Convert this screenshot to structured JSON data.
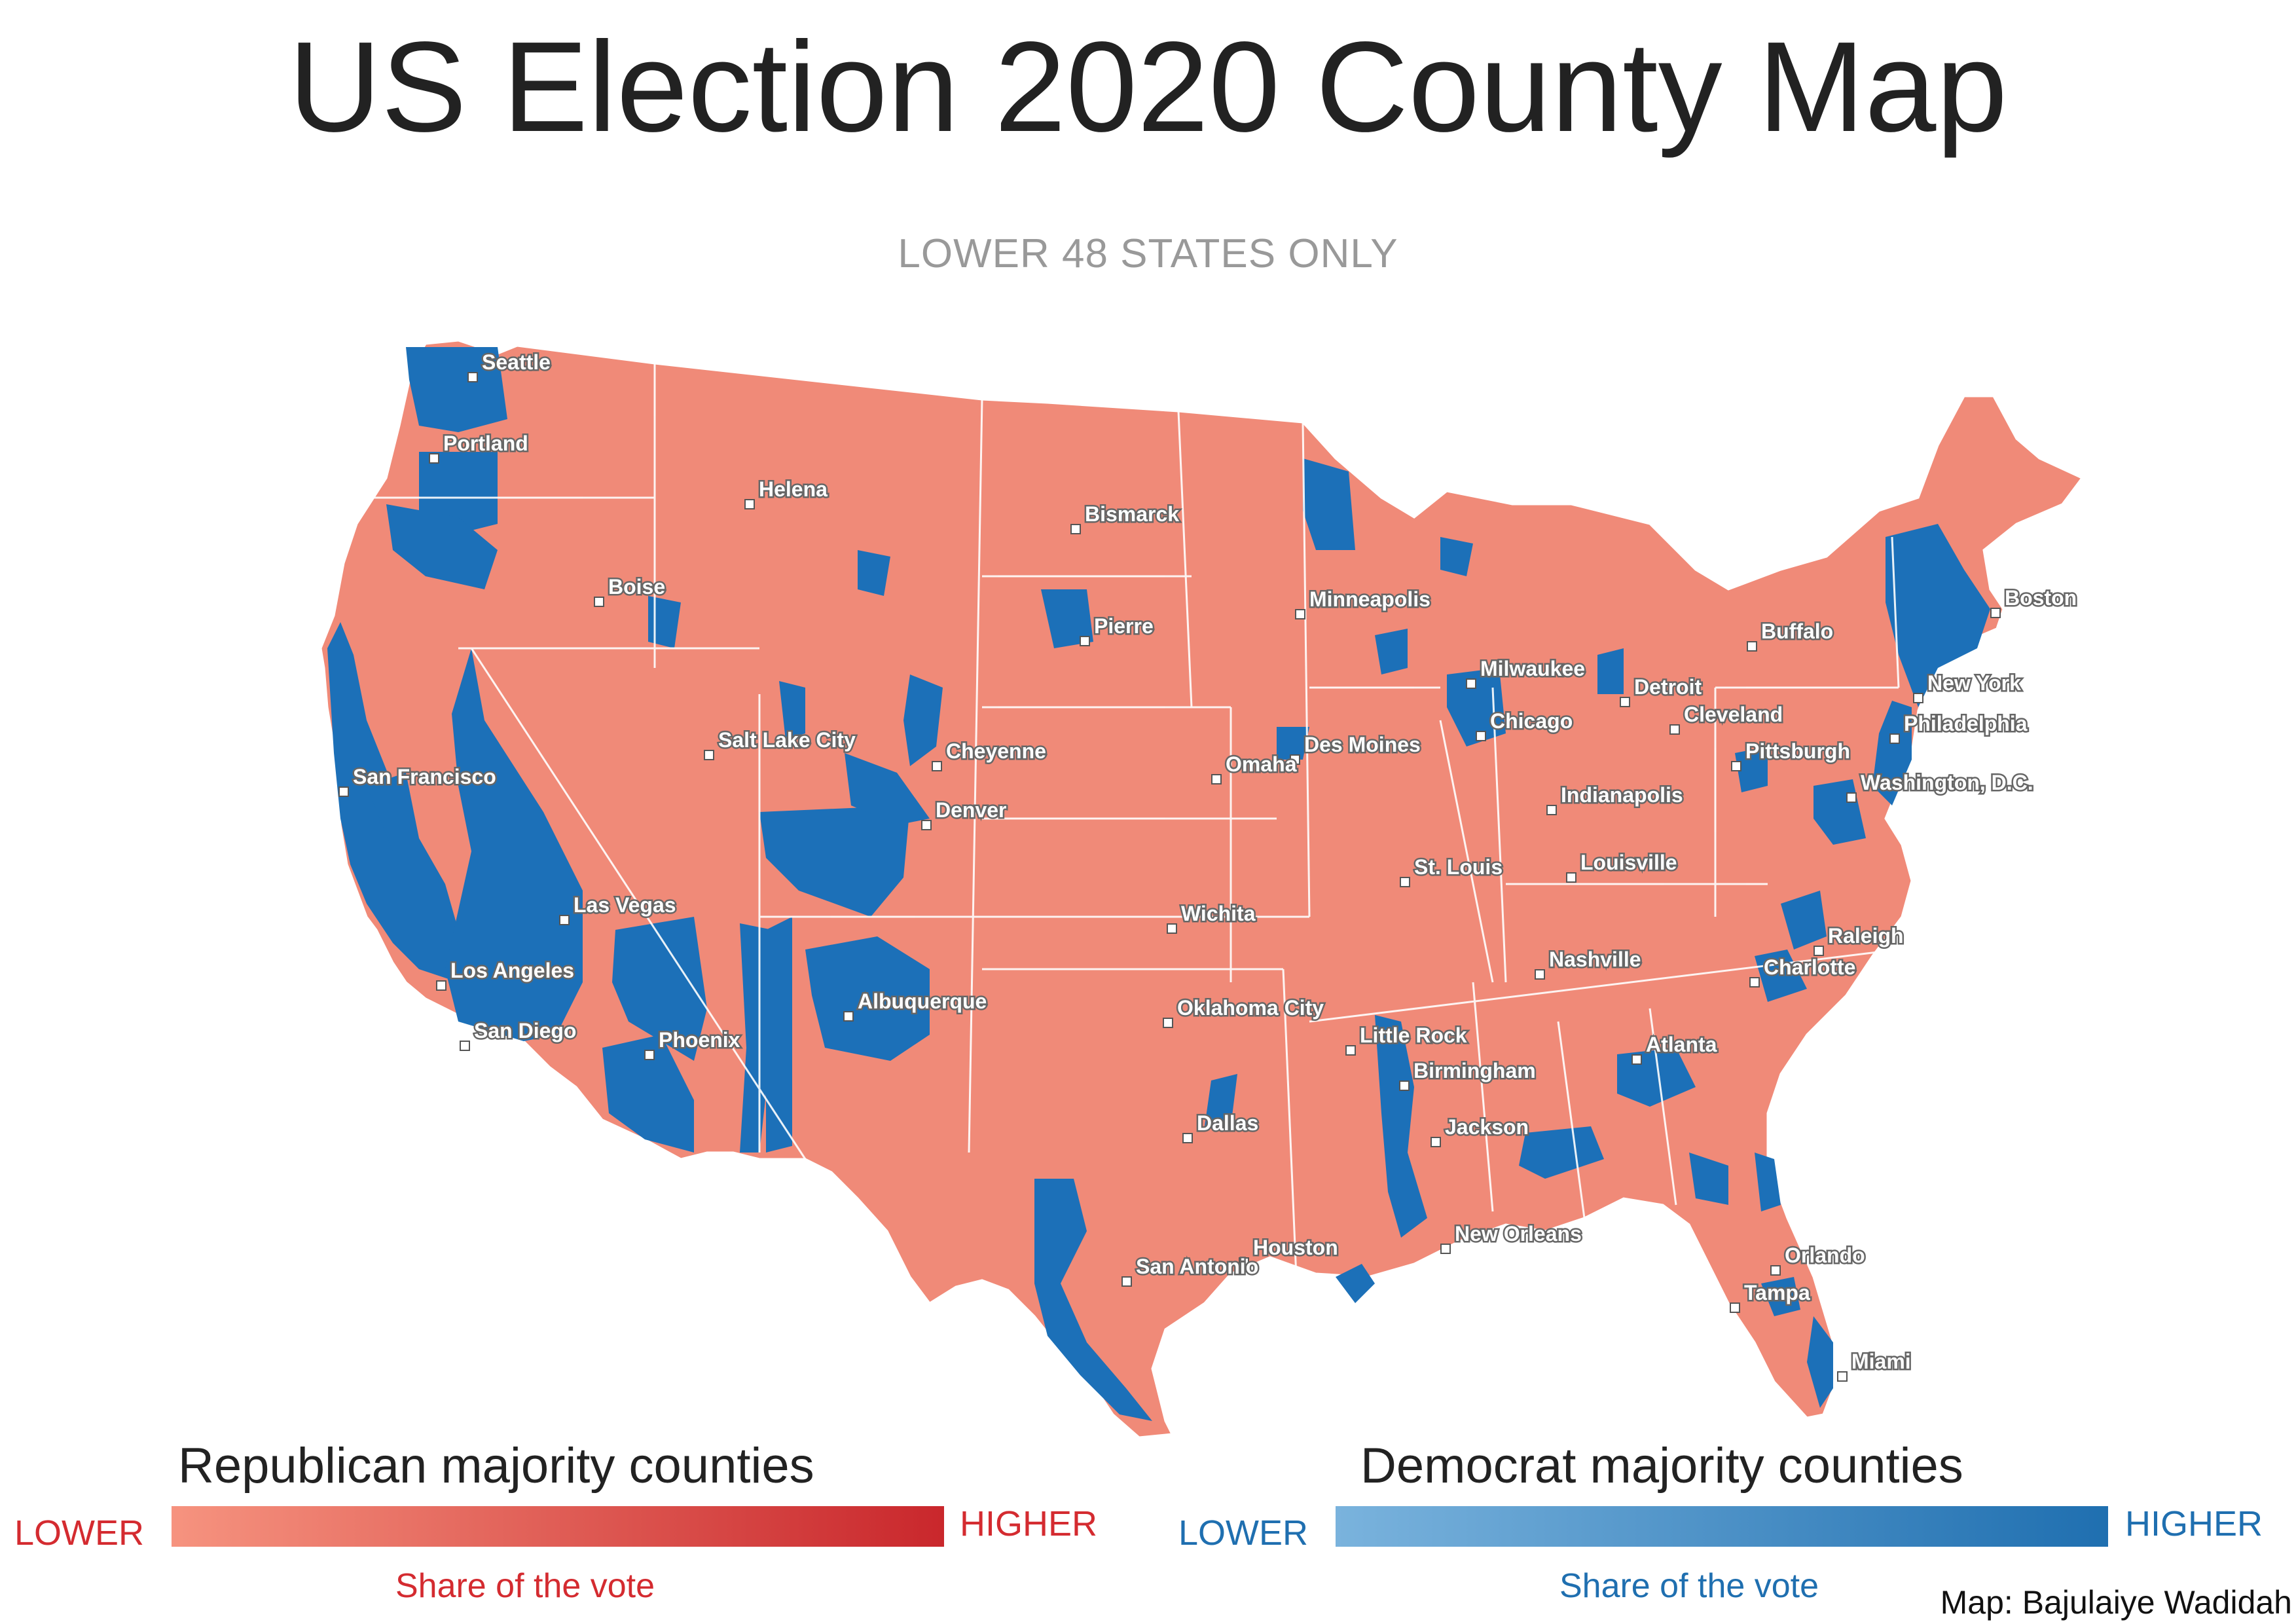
{
  "title": "US Election 2020 County Map",
  "subtitle": "LOWER 48 STATES ONLY",
  "colors": {
    "republican_low": "#f6937f",
    "republican_high": "#c9272c",
    "democrat_low": "#7ab3dd",
    "democrat_high": "#1f6fb0",
    "map_base": "#f08a78",
    "map_blue": "#1c70b8",
    "label_red": "#d42b30",
    "label_blue": "#1f6fb0"
  },
  "cities": [
    {
      "name": "Seattle"
    },
    {
      "name": "Portland"
    },
    {
      "name": "Helena"
    },
    {
      "name": "Bismarck"
    },
    {
      "name": "Boise"
    },
    {
      "name": "Pierre"
    },
    {
      "name": "Minneapolis"
    },
    {
      "name": "Boston"
    },
    {
      "name": "Buffalo"
    },
    {
      "name": "Milwaukee"
    },
    {
      "name": "Detroit"
    },
    {
      "name": "New York"
    },
    {
      "name": "Cleveland"
    },
    {
      "name": "Chicago"
    },
    {
      "name": "Philadelphia"
    },
    {
      "name": "Salt Lake City"
    },
    {
      "name": "Cheyenne"
    },
    {
      "name": "Des Moines"
    },
    {
      "name": "Pittsburgh"
    },
    {
      "name": "San Francisco"
    },
    {
      "name": "Omaha"
    },
    {
      "name": "Washington, D.C."
    },
    {
      "name": "Denver"
    },
    {
      "name": "Indianapolis"
    },
    {
      "name": "St. Louis"
    },
    {
      "name": "Louisville"
    },
    {
      "name": "Las Vegas"
    },
    {
      "name": "Wichita"
    },
    {
      "name": "Raleigh"
    },
    {
      "name": "Nashville"
    },
    {
      "name": "Los Angeles"
    },
    {
      "name": "Charlotte"
    },
    {
      "name": "Albuquerque"
    },
    {
      "name": "Oklahoma City"
    },
    {
      "name": "San Diego"
    },
    {
      "name": "Little Rock"
    },
    {
      "name": "Phoenix"
    },
    {
      "name": "Atlanta"
    },
    {
      "name": "Birmingham"
    },
    {
      "name": "Dallas"
    },
    {
      "name": "Jackson"
    },
    {
      "name": "New Orleans"
    },
    {
      "name": "Houston"
    },
    {
      "name": "San Antonio"
    },
    {
      "name": "Orlando"
    },
    {
      "name": "Tampa"
    },
    {
      "name": "Miami"
    }
  ],
  "legend": {
    "republican": {
      "title": "Republican majority counties",
      "low": "LOWER",
      "high": "HIGHER",
      "caption": "Share of the vote"
    },
    "democrat": {
      "title": "Democrat majority counties",
      "low": "LOWER",
      "high": "HIGHER",
      "caption": "Share of the vote"
    }
  },
  "credit": "Map: Bajulaiye Wadidah"
}
